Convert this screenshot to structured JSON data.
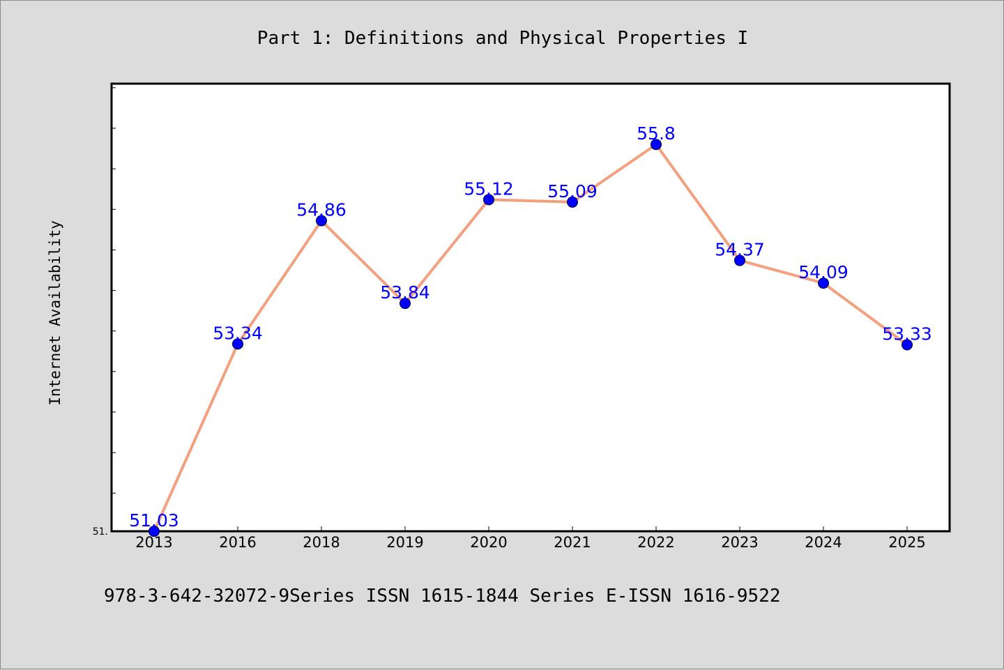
{
  "chart_data": {
    "type": "line",
    "title": "Part 1: Definitions and Physical Properties I",
    "xlabel": "",
    "ylabel": "Internet Availability",
    "categories": [
      "2013",
      "2016",
      "2018",
      "2019",
      "2020",
      "2021",
      "2022",
      "2023",
      "2024",
      "2025"
    ],
    "series": [
      {
        "name": "",
        "values": [
          51.03,
          53.34,
          54.86,
          53.84,
          55.12,
          55.09,
          55.8,
          54.37,
          54.09,
          53.33
        ],
        "line_color": "#f4a07e",
        "marker_color": "#0000ff"
      }
    ],
    "data_labels": [
      "51.03",
      "53.34",
      "54.86",
      "53.84",
      "55.12",
      "55.09",
      "55.8",
      "54.37",
      "54.09",
      "53.33"
    ],
    "ylim": [
      51.03,
      56.55
    ],
    "ytick_labels": [
      "51."
    ],
    "ytick_values": [
      51.03
    ],
    "minor_tick_step": 0.5,
    "grid": false,
    "legend": "none",
    "colors": {
      "background": "#dcdcdc",
      "plot_background": "#ffffff",
      "axis": "#000000",
      "label_color": "#0000ff"
    }
  },
  "footer": {
    "text": "978-3-642-32072-9Series ISSN 1615-1844 Series E-ISSN 1616-9522"
  }
}
